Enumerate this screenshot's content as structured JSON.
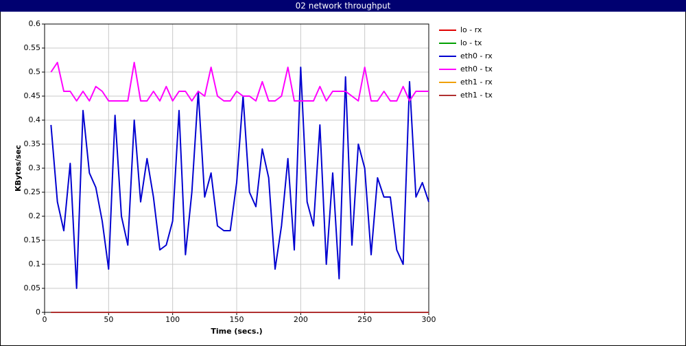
{
  "chart_data": {
    "type": "line",
    "title": "02 network throughput",
    "x_label": "Time (secs.)",
    "y_label": "KBytes/sec",
    "x": [
      5,
      10,
      15,
      20,
      25,
      30,
      35,
      40,
      45,
      50,
      55,
      60,
      65,
      70,
      75,
      80,
      85,
      90,
      95,
      100,
      105,
      110,
      115,
      120,
      125,
      130,
      135,
      140,
      145,
      150,
      155,
      160,
      165,
      170,
      175,
      180,
      185,
      190,
      195,
      200,
      205,
      210,
      215,
      220,
      225,
      230,
      235,
      240,
      245,
      250,
      255,
      260,
      265,
      270,
      275,
      280,
      285,
      290,
      295,
      300
    ],
    "series": [
      {
        "name": "lo - rx",
        "color": "#e00000",
        "values": [
          0,
          0,
          0,
          0,
          0,
          0,
          0,
          0,
          0,
          0,
          0,
          0,
          0,
          0,
          0,
          0,
          0,
          0,
          0,
          0,
          0,
          0,
          0,
          0,
          0,
          0,
          0,
          0,
          0,
          0,
          0,
          0,
          0,
          0,
          0,
          0,
          0,
          0,
          0,
          0,
          0,
          0,
          0,
          0,
          0,
          0,
          0,
          0,
          0,
          0,
          0,
          0,
          0,
          0,
          0,
          0,
          0,
          0,
          0,
          0
        ]
      },
      {
        "name": "lo - tx",
        "color": "#00a000",
        "values": [
          0,
          0,
          0,
          0,
          0,
          0,
          0,
          0,
          0,
          0,
          0,
          0,
          0,
          0,
          0,
          0,
          0,
          0,
          0,
          0,
          0,
          0,
          0,
          0,
          0,
          0,
          0,
          0,
          0,
          0,
          0,
          0,
          0,
          0,
          0,
          0,
          0,
          0,
          0,
          0,
          0,
          0,
          0,
          0,
          0,
          0,
          0,
          0,
          0,
          0,
          0,
          0,
          0,
          0,
          0,
          0,
          0,
          0,
          0,
          0
        ]
      },
      {
        "name": "eth0 - rx",
        "color": "#0000d0",
        "values": [
          0.39,
          0.23,
          0.17,
          0.31,
          0.05,
          0.42,
          0.29,
          0.26,
          0.19,
          0.09,
          0.41,
          0.2,
          0.14,
          0.4,
          0.23,
          0.32,
          0.24,
          0.13,
          0.14,
          0.19,
          0.42,
          0.12,
          0.25,
          0.46,
          0.24,
          0.29,
          0.18,
          0.17,
          0.17,
          0.27,
          0.45,
          0.25,
          0.22,
          0.34,
          0.28,
          0.09,
          0.18,
          0.32,
          0.13,
          0.51,
          0.23,
          0.18,
          0.39,
          0.1,
          0.29,
          0.07,
          0.49,
          0.14,
          0.35,
          0.3,
          0.12,
          0.28,
          0.24,
          0.24,
          0.13,
          0.1,
          0.48,
          0.24,
          0.27,
          0.23
        ]
      },
      {
        "name": "eth0 - tx",
        "color": "#ff00ff",
        "values": [
          0.5,
          0.52,
          0.46,
          0.46,
          0.44,
          0.46,
          0.44,
          0.47,
          0.46,
          0.44,
          0.44,
          0.44,
          0.44,
          0.52,
          0.44,
          0.44,
          0.46,
          0.44,
          0.47,
          0.44,
          0.46,
          0.46,
          0.44,
          0.46,
          0.45,
          0.51,
          0.45,
          0.44,
          0.44,
          0.46,
          0.45,
          0.45,
          0.44,
          0.48,
          0.44,
          0.44,
          0.45,
          0.51,
          0.44,
          0.44,
          0.44,
          0.44,
          0.47,
          0.44,
          0.46,
          0.46,
          0.46,
          0.45,
          0.44,
          0.51,
          0.44,
          0.44,
          0.46,
          0.44,
          0.44,
          0.47,
          0.44,
          0.46,
          0.46,
          0.46
        ]
      },
      {
        "name": "eth1 - rx",
        "color": "#f0a000",
        "values": [
          0,
          0,
          0,
          0,
          0,
          0,
          0,
          0,
          0,
          0,
          0,
          0,
          0,
          0,
          0,
          0,
          0,
          0,
          0,
          0,
          0,
          0,
          0,
          0,
          0,
          0,
          0,
          0,
          0,
          0,
          0,
          0,
          0,
          0,
          0,
          0,
          0,
          0,
          0,
          0,
          0,
          0,
          0,
          0,
          0,
          0,
          0,
          0,
          0,
          0,
          0,
          0,
          0,
          0,
          0,
          0,
          0,
          0,
          0,
          0
        ]
      },
      {
        "name": "eth1 - tx",
        "color": "#b03030",
        "values": [
          0,
          0,
          0,
          0,
          0,
          0,
          0,
          0,
          0,
          0,
          0,
          0,
          0,
          0,
          0,
          0,
          0,
          0,
          0,
          0,
          0,
          0,
          0,
          0,
          0,
          0,
          0,
          0,
          0,
          0,
          0,
          0,
          0,
          0,
          0,
          0,
          0,
          0,
          0,
          0,
          0,
          0,
          0,
          0,
          0,
          0,
          0,
          0,
          0,
          0,
          0,
          0,
          0,
          0,
          0,
          0,
          0,
          0,
          0,
          0
        ]
      }
    ],
    "xlim": [
      0,
      300
    ],
    "xticks": [
      0,
      50,
      100,
      150,
      200,
      250,
      300
    ],
    "ylim": [
      0,
      0.6
    ],
    "yticks": [
      0,
      0.05,
      0.1,
      0.15,
      0.2,
      0.25,
      0.3,
      0.35,
      0.4,
      0.45,
      0.5,
      0.55,
      0.6
    ],
    "grid": true,
    "legend": "right"
  }
}
